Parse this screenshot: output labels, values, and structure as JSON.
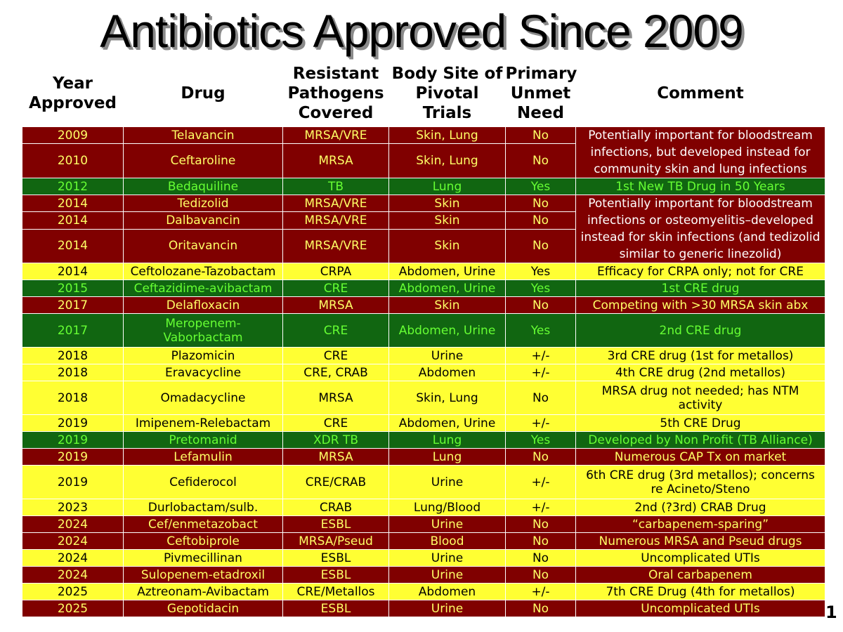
{
  "title": "Antibiotics Approved Since 2009",
  "headers": {
    "year": "Year Approved",
    "drug": "Drug",
    "pathogens": "Resistant Pathogens Covered",
    "site": "Body Site of Pivotal Trials",
    "need": "Primary Unmet Need",
    "comment": "Comment"
  },
  "rows": [
    {
      "year": "2009",
      "drug": "Telavancin",
      "pathogens": "MRSA/VRE",
      "site": "Skin, Lung",
      "need": "No"
    },
    {
      "year": "2010",
      "drug": "Ceftaroline",
      "pathogens": "MRSA",
      "site": "Skin, Lung",
      "need": "No"
    },
    {
      "year": "2012",
      "drug": "Bedaquiline",
      "pathogens": "TB",
      "site": "Lung",
      "need": "Yes",
      "comment": "1st New TB Drug in 50 Years"
    },
    {
      "year": "2014",
      "drug": "Tedizolid",
      "pathogens": "MRSA/VRE",
      "site": "Skin",
      "need": "No"
    },
    {
      "year": "2014",
      "drug": "Dalbavancin",
      "pathogens": "MRSA/VRE",
      "site": "Skin",
      "need": "No"
    },
    {
      "year": "2014",
      "drug": "Oritavancin",
      "pathogens": "MRSA/VRE",
      "site": "Skin",
      "need": "No"
    },
    {
      "year": "2014",
      "drug": "Ceftolozane-Tazobactam",
      "pathogens": "CRPA",
      "site": "Abdomen, Urine",
      "need": "Yes",
      "comment": "Efficacy for CRPA only; not for CRE"
    },
    {
      "year": "2015",
      "drug": "Ceftazidime-avibactam",
      "pathogens": "CRE",
      "site": "Abdomen, Urine",
      "need": "Yes",
      "comment": "1st CRE drug"
    },
    {
      "year": "2017",
      "drug": "Delafloxacin",
      "pathogens": "MRSA",
      "site": "Skin",
      "need": "No",
      "comment": "Competing with >30 MRSA skin abx"
    },
    {
      "year": "2017",
      "drug": "Meropenem-Vaborbactam",
      "pathogens": "CRE",
      "site": "Abdomen, Urine",
      "need": "Yes",
      "comment": "2nd CRE drug"
    },
    {
      "year": "2018",
      "drug": "Plazomicin",
      "pathogens": "CRE",
      "site": "Urine",
      "need": "+/-",
      "comment": "3rd CRE drug (1st for metallos)"
    },
    {
      "year": "2018",
      "drug": "Eravacycline",
      "pathogens": "CRE, CRAB",
      "site": "Abdomen",
      "need": "+/-",
      "comment": "4th CRE drug (2nd metallos)"
    },
    {
      "year": "2018",
      "drug": "Omadacycline",
      "pathogens": "MRSA",
      "site": "Skin, Lung",
      "need": "No",
      "comment": "MRSA drug not needed; has NTM activity"
    },
    {
      "year": "2019",
      "drug": "Imipenem-Relebactam",
      "pathogens": "CRE",
      "site": "Abdomen, Urine",
      "need": "+/-",
      "comment": "5th CRE Drug"
    },
    {
      "year": "2019",
      "drug": "Pretomanid",
      "pathogens": "XDR TB",
      "site": "Lung",
      "need": "Yes",
      "comment": "Developed by Non Profit (TB Alliance)"
    },
    {
      "year": "2019",
      "drug": "Lefamulin",
      "pathogens": "MRSA",
      "site": "Lung",
      "need": "No",
      "comment": "Numerous CAP Tx on market"
    },
    {
      "year": "2019",
      "drug": "Cefiderocol",
      "pathogens": "CRE/CRAB",
      "site": "Urine",
      "need": "+/-",
      "comment": "6th CRE drug (3rd metallos); concerns re Acineto/Steno"
    },
    {
      "year": "2023",
      "drug": "Durlobactam/sulb.",
      "pathogens": "CRAB",
      "site": "Lung/Blood",
      "need": "+/-",
      "comment": "2nd (?3rd) CRAB Drug"
    },
    {
      "year": "2024",
      "drug": "Cef/enmetazobact",
      "pathogens": "ESBL",
      "site": "Urine",
      "need": "No",
      "comment": "“carbapenem-sparing”"
    },
    {
      "year": "2024",
      "drug": "Ceftobiprole",
      "pathogens": "MRSA/Pseud",
      "site": "Blood",
      "need": "No",
      "comment": "Numerous MRSA and Pseud drugs"
    },
    {
      "year": "2024",
      "drug": "Pivmecillinan",
      "pathogens": "ESBL",
      "site": "Urine",
      "need": "No",
      "comment": "Uncomplicated UTIs"
    },
    {
      "year": "2024",
      "drug": "Sulopenem-etadroxil",
      "pathogens": "ESBL",
      "site": "Urine",
      "need": "No",
      "comment": "Oral carbapenem"
    },
    {
      "year": "2025",
      "drug": "Aztreonam-Avibactam",
      "pathogens": "CRE/Metallos",
      "site": "Abdomen",
      "need": "+/-",
      "comment": "7th CRE Drug (4th for metallos)"
    },
    {
      "year": "2025",
      "drug": "Gepotidacin",
      "pathogens": "ESBL",
      "site": "Urine",
      "need": "No",
      "comment": "Uncomplicated UTIs"
    }
  ],
  "merged_comments": {
    "group1": "Potentially important for bloodstream infections, but developed instead for community skin and lung infections",
    "group2": "Potentially important for bloodstream infections or osteomyelitis–developed instead for skin infections (and tedizolid similar to generic linezolid)"
  },
  "page_number": "1",
  "colors": {
    "dark_red": "#800000",
    "green": "#116611",
    "yellow": "#ffff33",
    "yellow_text": "#ffff66",
    "green_text": "#66ff33"
  }
}
